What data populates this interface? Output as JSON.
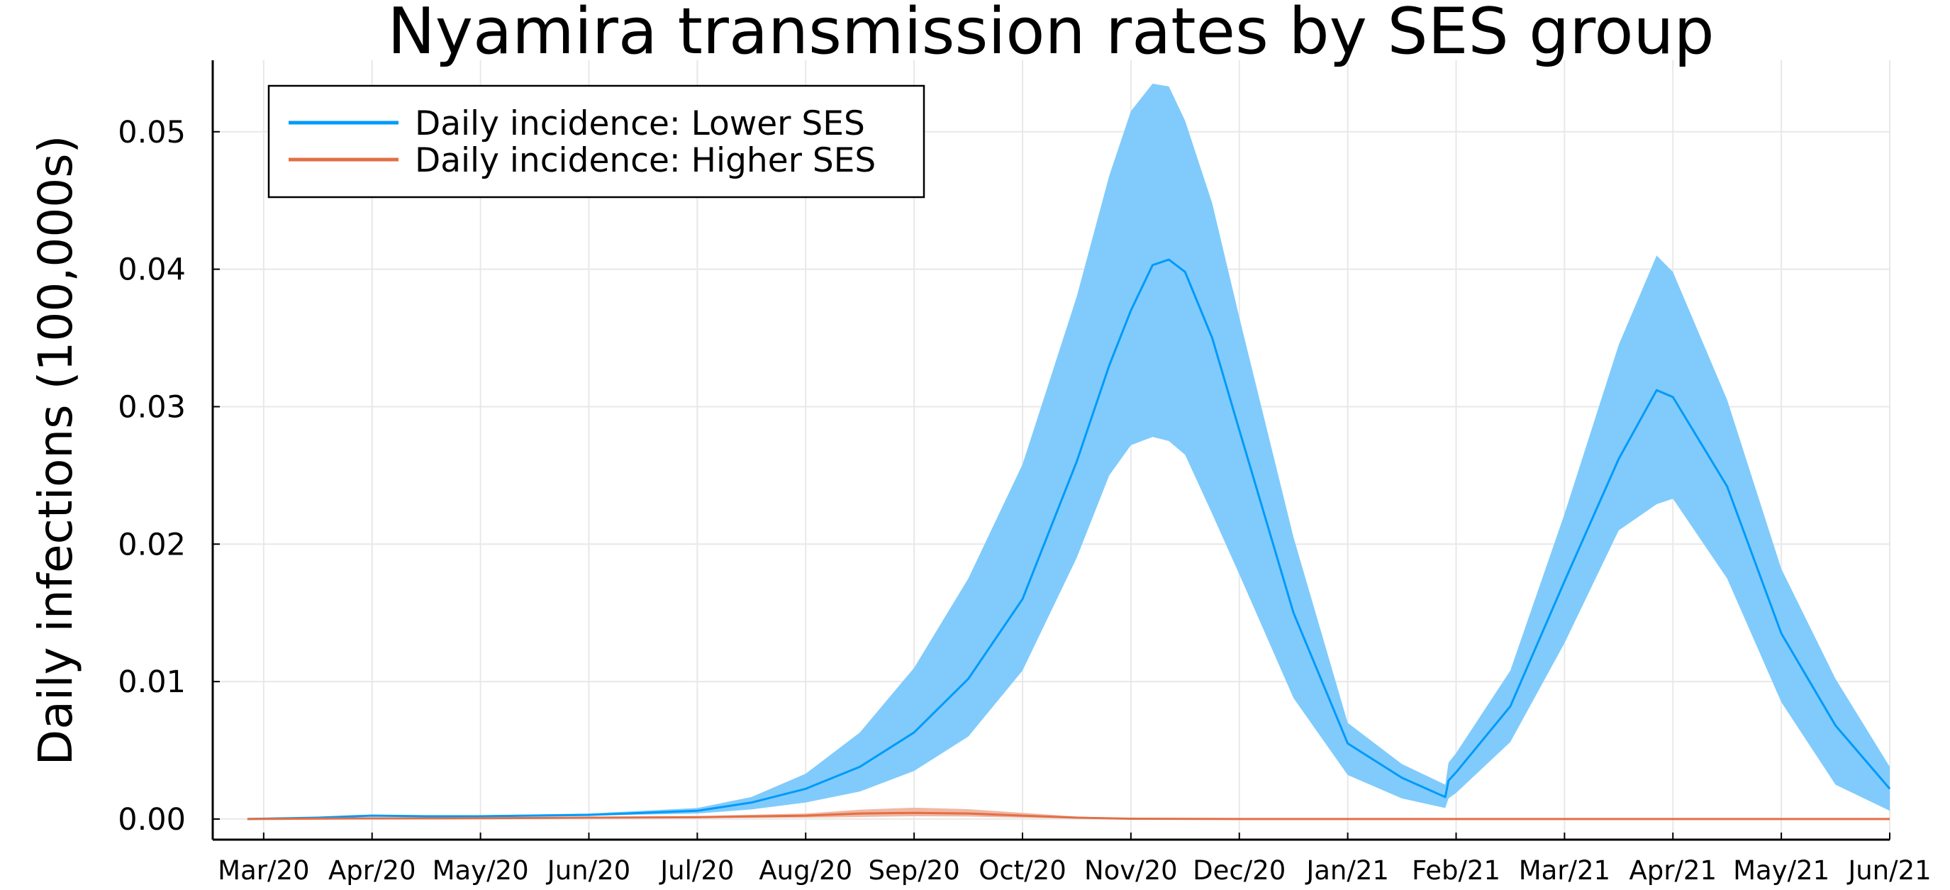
{
  "chart_data": {
    "type": "line",
    "title": "Nyamira transmission rates by SES group",
    "xlabel": "",
    "ylabel": "Daily infections (100,000s)",
    "x_unit": "months since 2020-03-01",
    "xlim": [
      -0.47,
      15.0
    ],
    "ylim": [
      -0.0015,
      0.0552
    ],
    "yticks": [
      0.0,
      0.01,
      0.02,
      0.03,
      0.04,
      0.05
    ],
    "ytick_labels": [
      "0.00",
      "0.01",
      "0.02",
      "0.03",
      "0.04",
      "0.05"
    ],
    "xtick_labels": [
      "Mar/20",
      "Apr/20",
      "May/20",
      "Jun/20",
      "Jul/20",
      "Aug/20",
      "Sep/20",
      "Oct/20",
      "Nov/20",
      "Dec/20",
      "Jan/21",
      "Feb/21",
      "Mar/21",
      "Apr/21",
      "May/21",
      "Jun/21"
    ],
    "grid": true,
    "legend": {
      "position": "top-left",
      "entries": [
        "Daily incidence: Lower SES",
        "Daily incidence: Higher SES"
      ]
    },
    "series": [
      {
        "name": "Daily incidence: Lower SES",
        "color": "#009AFA",
        "band_color": "#80CBFC",
        "x": [
          -0.15,
          0.5,
          1.0,
          1.5,
          2.0,
          3.0,
          4.0,
          4.5,
          5.0,
          5.5,
          6.0,
          6.5,
          7.0,
          7.5,
          7.8,
          8.0,
          8.2,
          8.35,
          8.5,
          8.75,
          9.0,
          9.5,
          10.0,
          10.5,
          10.9,
          10.93,
          11.0,
          11.5,
          12.0,
          12.5,
          12.85,
          13.0,
          13.5,
          14.0,
          14.5,
          15.0
        ],
        "y": [
          0.0,
          0.0001,
          0.00025,
          0.0002,
          0.0002,
          0.0003,
          0.0006,
          0.0012,
          0.0022,
          0.0038,
          0.0063,
          0.0102,
          0.016,
          0.026,
          0.033,
          0.037,
          0.0403,
          0.0407,
          0.0398,
          0.035,
          0.0283,
          0.015,
          0.0055,
          0.003,
          0.0016,
          0.0028,
          0.0034,
          0.0082,
          0.0173,
          0.0262,
          0.0312,
          0.0307,
          0.0242,
          0.0135,
          0.0068,
          0.0022
        ],
        "lower": [
          0.0,
          0.0001,
          0.0002,
          0.00018,
          0.00018,
          0.00025,
          0.0004,
          0.0007,
          0.0012,
          0.002,
          0.0035,
          0.006,
          0.0108,
          0.019,
          0.025,
          0.0272,
          0.0278,
          0.0275,
          0.0265,
          0.0222,
          0.0178,
          0.0088,
          0.0032,
          0.0015,
          0.0008,
          0.0015,
          0.0019,
          0.0056,
          0.0128,
          0.021,
          0.0229,
          0.0233,
          0.0175,
          0.0085,
          0.0025,
          0.0006
        ],
        "upper": [
          0.0,
          0.0001,
          0.0003,
          0.00028,
          0.00028,
          0.0004,
          0.0008,
          0.0016,
          0.0033,
          0.0063,
          0.011,
          0.0175,
          0.0258,
          0.038,
          0.0468,
          0.0515,
          0.0535,
          0.0533,
          0.0508,
          0.0448,
          0.0365,
          0.0205,
          0.007,
          0.004,
          0.0025,
          0.0041,
          0.0048,
          0.0108,
          0.0222,
          0.0345,
          0.041,
          0.0398,
          0.0305,
          0.0182,
          0.0102,
          0.0038
        ]
      },
      {
        "name": "Daily incidence: Higher SES",
        "color": "#E26F46",
        "band_color": "#F1B7A3",
        "x": [
          -0.15,
          1.0,
          2.0,
          3.0,
          4.0,
          5.0,
          5.5,
          6.0,
          6.5,
          7.0,
          7.5,
          8.0,
          9.0,
          15.0
        ],
        "y": [
          0.0,
          5e-05,
          6e-05,
          0.0001,
          0.00013,
          0.00025,
          0.0004,
          0.00045,
          0.0004,
          0.00025,
          0.0001,
          2e-05,
          0.0,
          0.0
        ],
        "lower": [
          0.0,
          2e-05,
          2e-05,
          5e-05,
          6e-05,
          0.0001,
          0.00015,
          0.0002,
          0.00018,
          0.0001,
          3e-05,
          0.0,
          0.0,
          0.0
        ],
        "upper": [
          0.0,
          8e-05,
          0.0001,
          0.00015,
          0.00022,
          0.0004,
          0.00068,
          0.00083,
          0.00072,
          0.00045,
          0.00018,
          4e-05,
          0.0,
          0.0
        ]
      }
    ]
  }
}
